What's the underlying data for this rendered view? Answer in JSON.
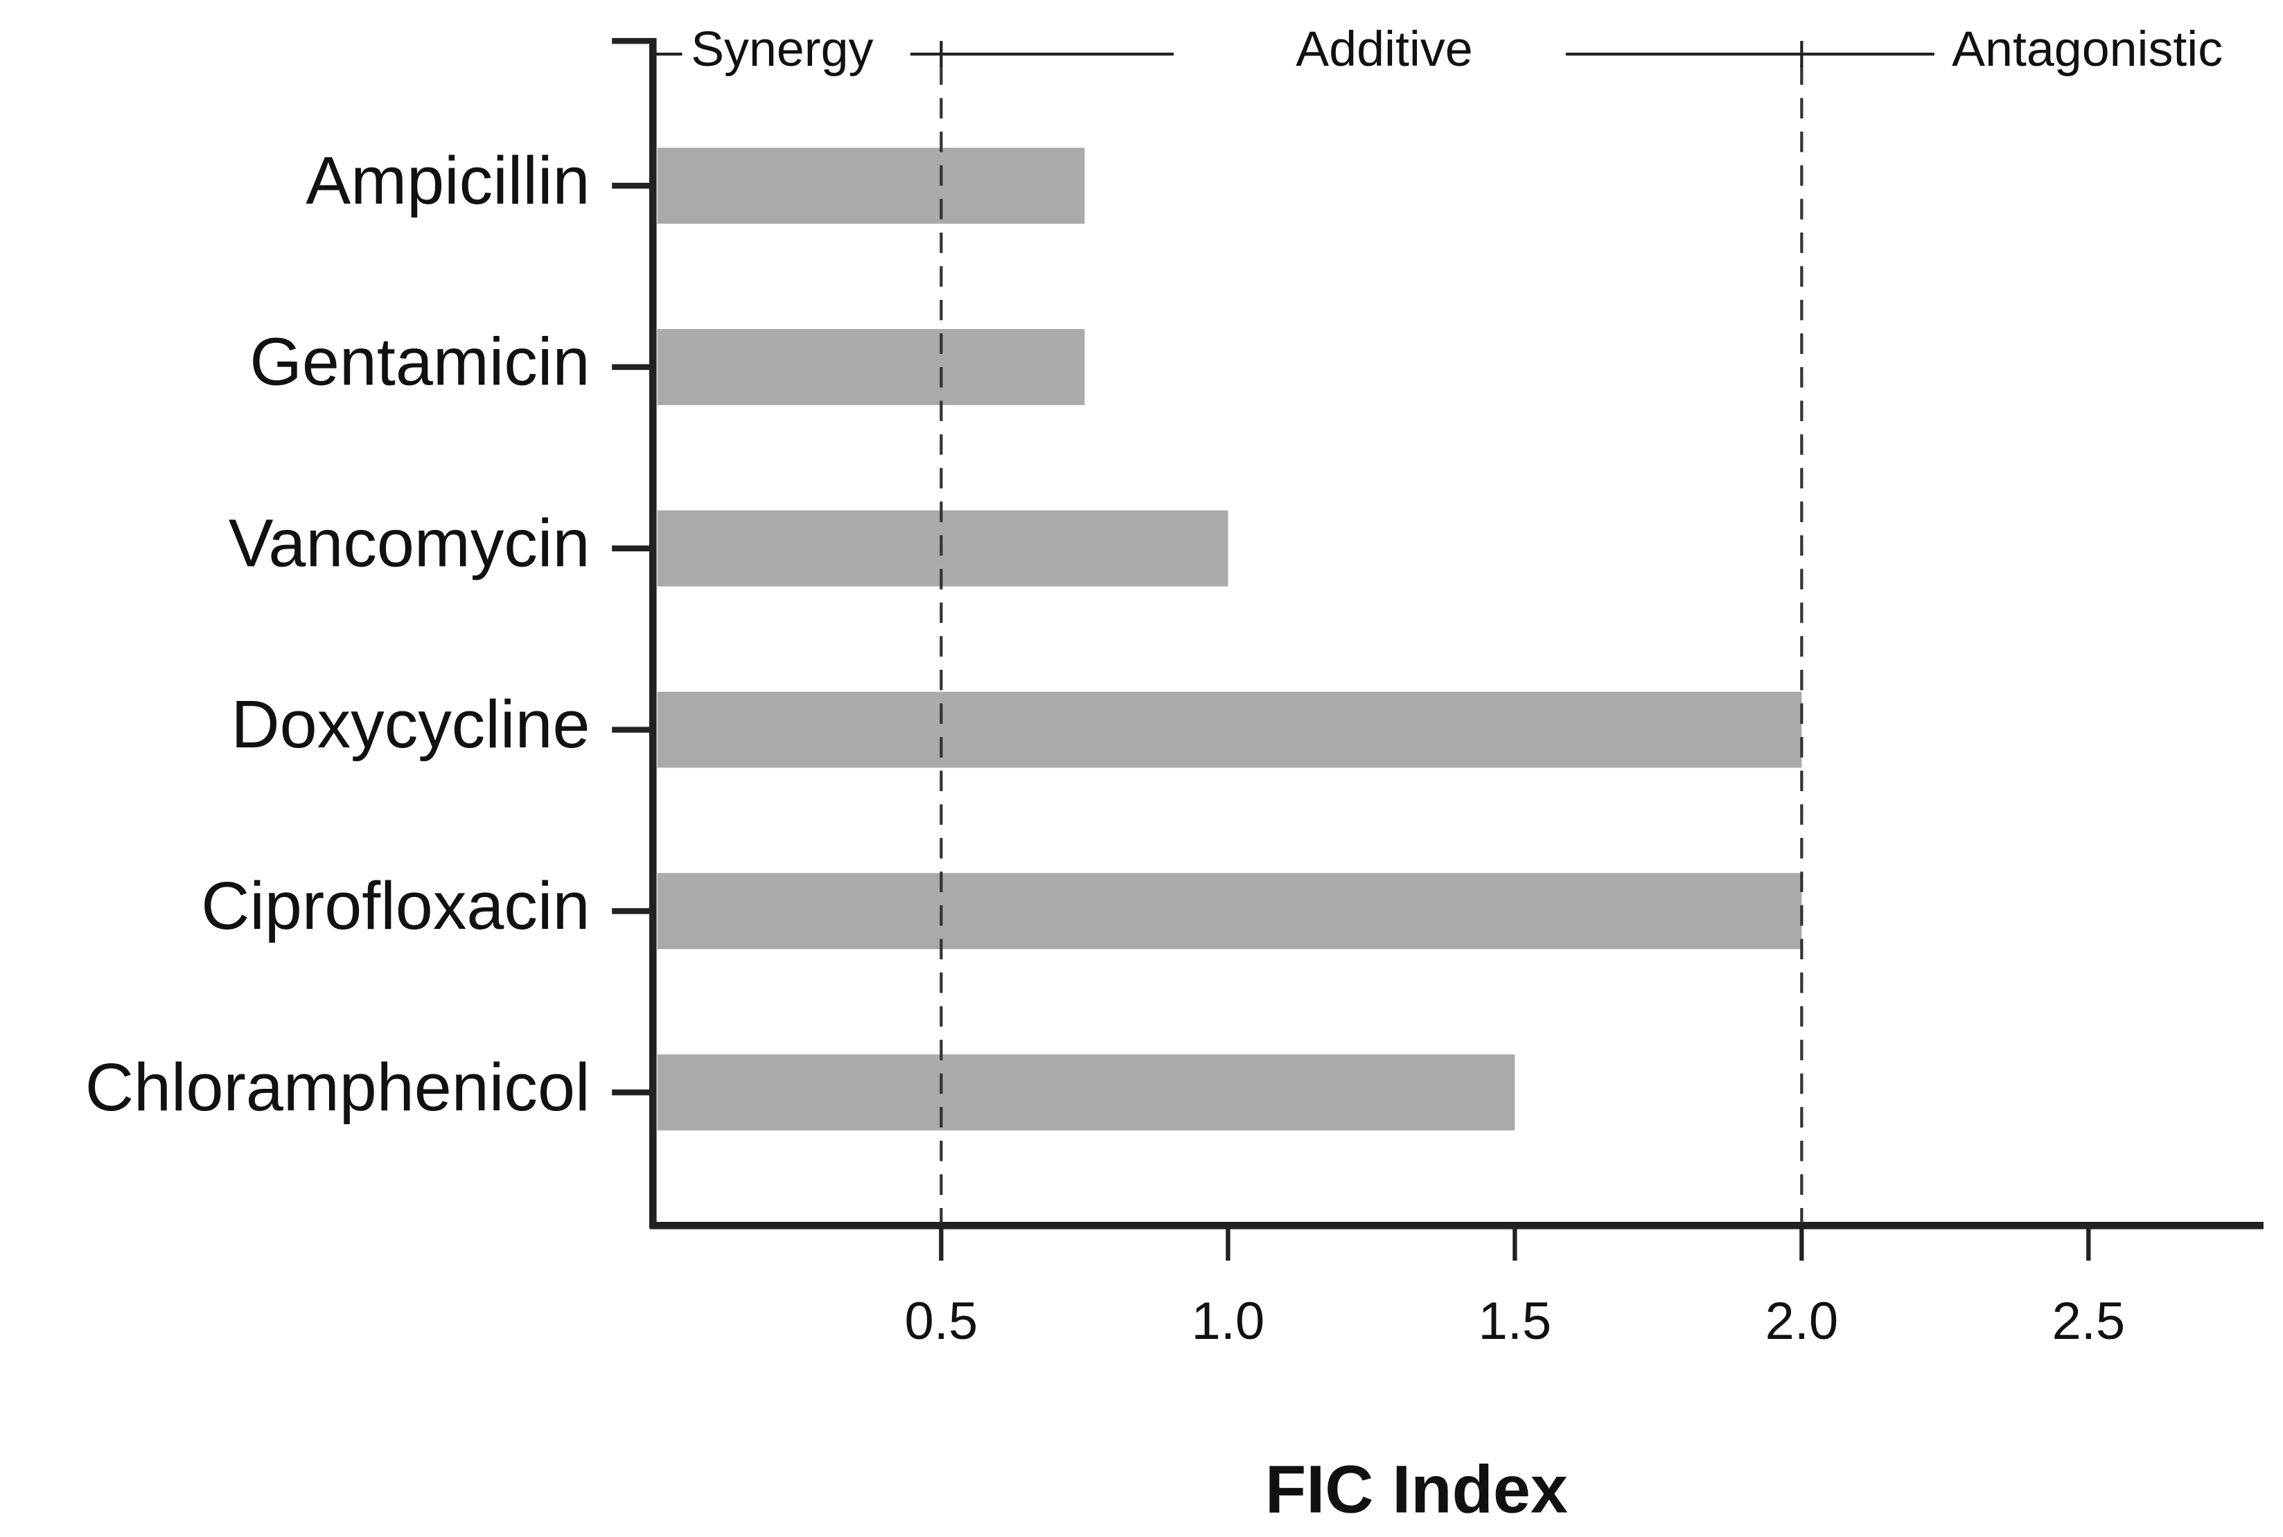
{
  "chart_data": {
    "type": "bar",
    "orientation": "horizontal",
    "xlabel": "FIC Index",
    "categories": [
      "Ampicillin",
      "Gentamicin",
      "Vancomycin",
      "Doxycycline",
      "Ciprofloxacin",
      "Chloramphenicol"
    ],
    "values": [
      0.75,
      0.75,
      1.0,
      2.0,
      2.0,
      1.5
    ],
    "color": "#aaaaaa",
    "xlim": [
      0,
      2.8
    ],
    "xticks": [
      0.5,
      {
        "value": 1.0,
        "label": "1.0"
      },
      1.5,
      {
        "value": 2.0,
        "label": "2.0"
      },
      2.5
    ],
    "thresholds": [
      0.5,
      2.0
    ],
    "regions": [
      "Synergy",
      "Additive",
      "Antagonistic"
    ]
  }
}
